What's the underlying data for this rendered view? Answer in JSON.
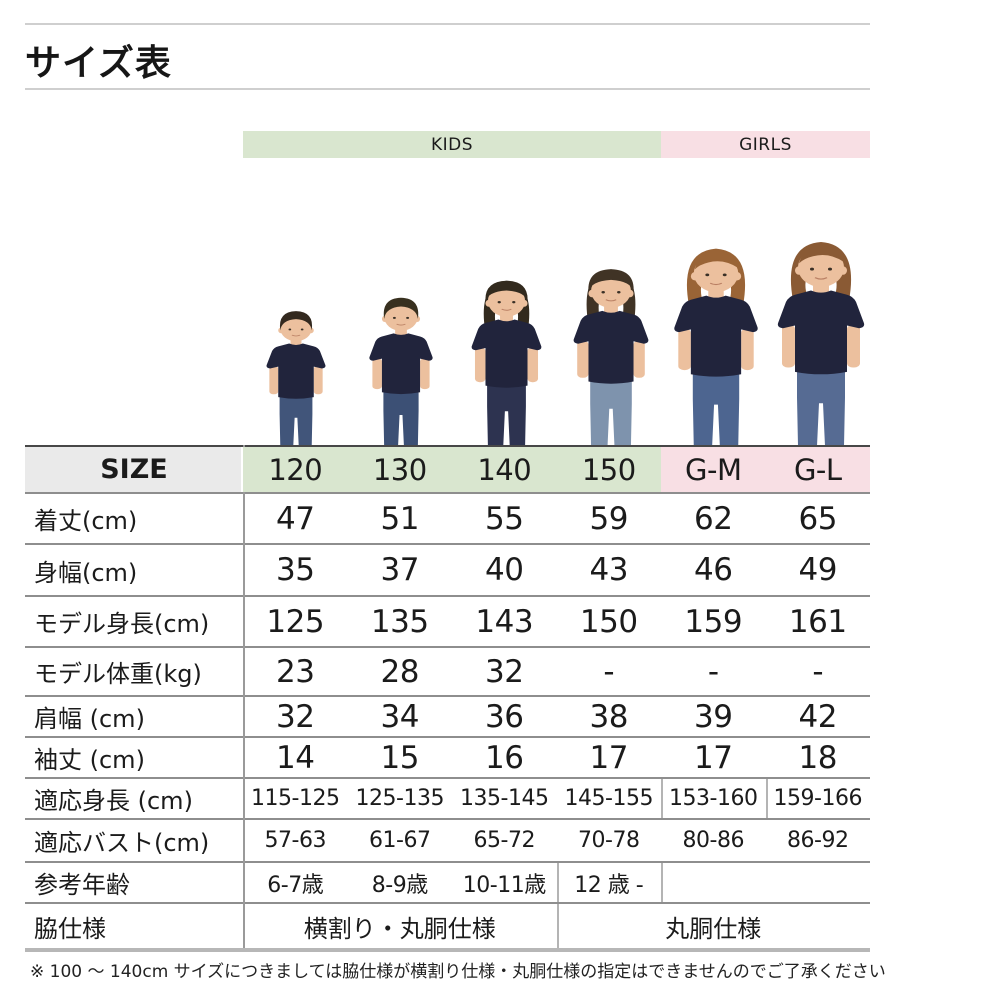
{
  "page": {
    "title": "サイズ表",
    "footnote": "※ 100 ～ 140cm サイズにつきましては脇仕様が横割り仕様・丸胴仕様の指定はできませんのでご了承ください"
  },
  "groups": {
    "kids_label": "KIDS",
    "girls_label": "GIRLS"
  },
  "colors": {
    "kids_bg": "#d9e6cf",
    "girls_bg": "#f8dfe4",
    "size_cell_bg": "#eaeaea",
    "tee_navy": "#21243c",
    "skin": "#ecc09e"
  },
  "models": [
    {
      "size": "120",
      "type": "boy",
      "hair": "#33291f",
      "jeans": "#41557a"
    },
    {
      "size": "130",
      "type": "boy",
      "hair": "#38301f",
      "jeans": "#3c5075"
    },
    {
      "size": "140",
      "type": "girl",
      "hair": "#322a1e",
      "jeans": "#2d3350"
    },
    {
      "size": "150",
      "type": "girl",
      "hair": "#403325",
      "jeans": "#7e93ad"
    },
    {
      "size": "G-M",
      "type": "woman",
      "hair": "#9a6436",
      "jeans": "#4d6590"
    },
    {
      "size": "G-L",
      "type": "woman",
      "hair": "#8a5a34",
      "jeans": "#566b93"
    }
  ],
  "table": {
    "size_row": {
      "label": "SIZE",
      "values": [
        "120",
        "130",
        "140",
        "150",
        "G-M",
        "G-L"
      ]
    },
    "rows": [
      {
        "label": "着丈(cm)",
        "style": "lg",
        "values": [
          "47",
          "51",
          "55",
          "59",
          "62",
          "65"
        ]
      },
      {
        "label": "身幅(cm)",
        "style": "lg",
        "values": [
          "35",
          "37",
          "40",
          "43",
          "46",
          "49"
        ]
      },
      {
        "label": "モデル身長(cm)",
        "style": "lg",
        "values": [
          "125",
          "135",
          "143",
          "150",
          "159",
          "161"
        ]
      },
      {
        "label": "モデル体重(kg)",
        "style": "lg",
        "values": [
          "23",
          "28",
          "32",
          "-",
          "-",
          "-"
        ]
      },
      {
        "label": "肩幅 (cm)",
        "style": "lg",
        "values": [
          "32",
          "34",
          "36",
          "38",
          "39",
          "42"
        ]
      },
      {
        "label": "袖丈 (cm)",
        "style": "lg",
        "values": [
          "14",
          "15",
          "16",
          "17",
          "17",
          "18"
        ]
      },
      {
        "label": "適応身長 (cm)",
        "style": "sm",
        "values": [
          "115-125",
          "125-135",
          "135-145",
          "145-155",
          "153-160",
          "159-166"
        ],
        "vlines": [
          4,
          5
        ]
      },
      {
        "label": "適応バスト(cm)",
        "style": "sm",
        "values": [
          "57-63",
          "61-67",
          "65-72",
          "70-78",
          "80-86",
          "86-92"
        ]
      },
      {
        "label": "参考年齢",
        "style": "sm",
        "values": [
          "6-7歳",
          "8-9歳",
          "10-11歳",
          "12 歳 -",
          "",
          ""
        ],
        "vlines": [
          3,
          4
        ]
      },
      {
        "label": "脇仕様",
        "style": "md",
        "merged": [
          {
            "text": "横割り・丸胴仕様",
            "from": 0,
            "to": 3
          },
          {
            "text": "丸胴仕様",
            "from": 3,
            "to": 6
          }
        ],
        "vlines": [
          3
        ]
      }
    ]
  }
}
